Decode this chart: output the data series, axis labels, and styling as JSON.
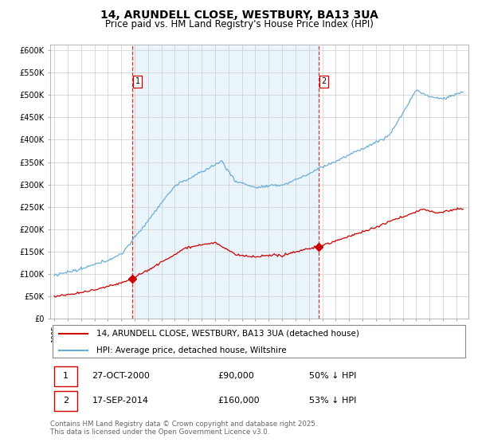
{
  "title": "14, ARUNDELL CLOSE, WESTBURY, BA13 3UA",
  "subtitle": "Price paid vs. HM Land Registry's House Price Index (HPI)",
  "ylim": [
    0,
    612500
  ],
  "yticks": [
    0,
    50000,
    100000,
    150000,
    200000,
    250000,
    300000,
    350000,
    400000,
    450000,
    500000,
    550000,
    600000
  ],
  "ytick_labels": [
    "£0",
    "£50K",
    "£100K",
    "£150K",
    "£200K",
    "£250K",
    "£300K",
    "£350K",
    "£400K",
    "£450K",
    "£500K",
    "£550K",
    "£600K"
  ],
  "hpi_color": "#6aaed6",
  "hpi_fill_color": "#d6eaf8",
  "price_color": "#cc0000",
  "marker1_x": 2000.83,
  "marker1_y": 90000,
  "marker2_x": 2014.72,
  "marker2_y": 160000,
  "xmin": 1994.7,
  "xmax": 2025.9,
  "legend_line1": "14, ARUNDELL CLOSE, WESTBURY, BA13 3UA (detached house)",
  "legend_line2": "HPI: Average price, detached house, Wiltshire",
  "annotation1_label": "1",
  "annotation1_date": "27-OCT-2000",
  "annotation1_price": "£90,000",
  "annotation1_hpi": "50% ↓ HPI",
  "annotation2_label": "2",
  "annotation2_date": "17-SEP-2014",
  "annotation2_price": "£160,000",
  "annotation2_hpi": "53% ↓ HPI",
  "footer": "Contains HM Land Registry data © Crown copyright and database right 2025.\nThis data is licensed under the Open Government Licence v3.0.",
  "bg_color": "#ffffff",
  "grid_color": "#cccccc",
  "title_fontsize": 10,
  "subtitle_fontsize": 8.5,
  "tick_fontsize": 7,
  "legend_fontsize": 7.5
}
